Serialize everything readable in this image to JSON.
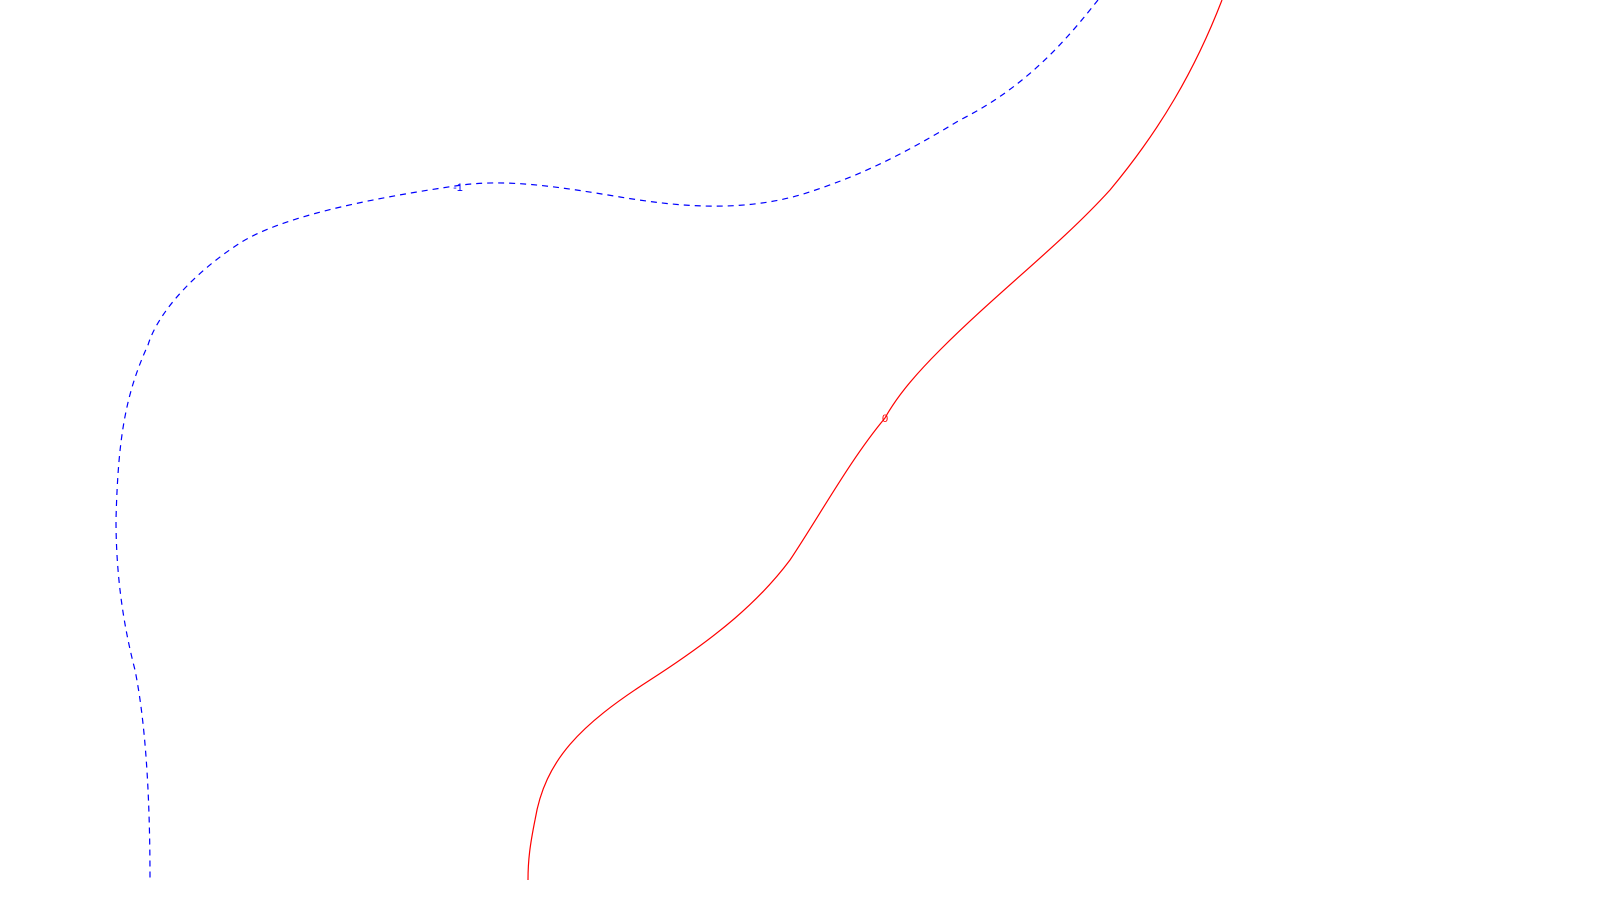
{
  "contours": [
    {
      "level_label": "-1",
      "color": "#0000ff",
      "line_style": "dashed"
    },
    {
      "level_label": "0",
      "color": "#ff0000",
      "line_style": "solid"
    }
  ]
}
